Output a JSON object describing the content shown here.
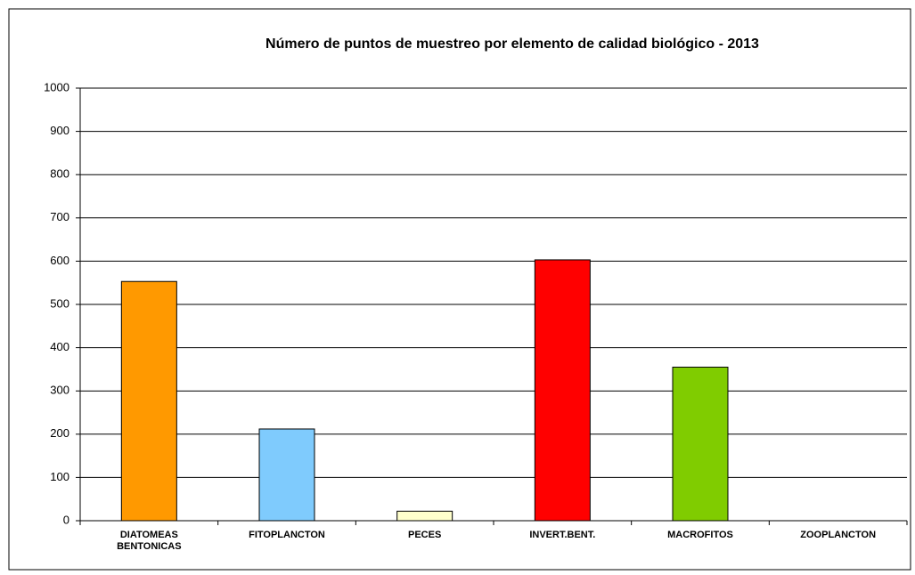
{
  "chart_data": {
    "type": "bar",
    "title": "Número de puntos de muestreo por elemento de calidad biológico - 2013",
    "categories": [
      "DIATOMEAS BENTONICAS",
      "FITOPLANCTON",
      "PECES",
      "INVERT.BENT.",
      "MACROFITOS",
      "ZOOPLANCTON"
    ],
    "values": [
      553,
      212,
      22,
      603,
      355,
      0
    ],
    "colors": [
      "#ff9900",
      "#7fcbfd",
      "#ffffcc",
      "#ff0000",
      "#80cc00",
      "#ccffff"
    ],
    "ylim": [
      0,
      1000
    ],
    "yticks": [
      0,
      100,
      200,
      300,
      400,
      500,
      600,
      700,
      800,
      900,
      1000
    ],
    "grid": true
  }
}
